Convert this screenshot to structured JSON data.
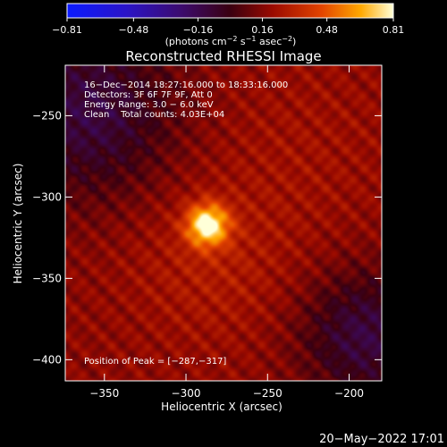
{
  "chart_data": {
    "type": "heatmap",
    "title": "Reconstructed RHESSI Image",
    "xlabel": "Heliocentric X (arcsec)",
    "ylabel": "Heliocentric Y (arcsec)",
    "xlim": [
      -374,
      -180
    ],
    "ylim": [
      -413,
      -219
    ],
    "x_ticks": [
      -350,
      -300,
      -250,
      -200
    ],
    "x_tick_labels": [
      "−350",
      "−300",
      "−250",
      "−200"
    ],
    "y_ticks": [
      -250,
      -300,
      -350,
      -400
    ],
    "y_tick_labels": [
      "−250",
      "−300",
      "−350",
      "−400"
    ],
    "colorbar": {
      "min": -0.81,
      "max": 0.81,
      "ticks": [
        -0.81,
        -0.48,
        -0.16,
        0.16,
        0.48,
        0.81
      ],
      "tick_labels": [
        "−0.81",
        "−0.48",
        "−0.16",
        "0.16",
        "0.48",
        "0.81"
      ],
      "unit_main": "(photons cm",
      "unit_sup1": "−2",
      "unit_mid": " s",
      "unit_sup2": "−1",
      "unit_mid2": " asec",
      "unit_sup3": "−2",
      "unit_end": ")"
    },
    "annotations": [
      "16−Dec−2014 18:27:16.000 to 18:33:16.000",
      "Detectors: 3F 6F 7F 9F, Att 0",
      "Energy Range: 3.0 − 6.0 keV",
      "Clean    Total counts: 4.03E+04"
    ],
    "peak_label": "Position of Peak = [−287,−317]",
    "peak": {
      "x": -287,
      "y": -317,
      "value": 0.81
    },
    "background_level": 0.18,
    "features": [
      {
        "x": -287,
        "y": -317,
        "amp": 0.63,
        "sigma": 9
      },
      {
        "x": -285,
        "y": -340,
        "amp": 0.1,
        "sigma": 35
      },
      {
        "x": -360,
        "y": -247,
        "amp": -0.3,
        "sigma": 38
      },
      {
        "x": -190,
        "y": -385,
        "amp": -0.3,
        "sigma": 28
      },
      {
        "x": -230,
        "y": -270,
        "amp": 0.05,
        "sigma": 40
      }
    ]
  },
  "footer": {
    "timestamp": "20−May−2022 17:01"
  }
}
